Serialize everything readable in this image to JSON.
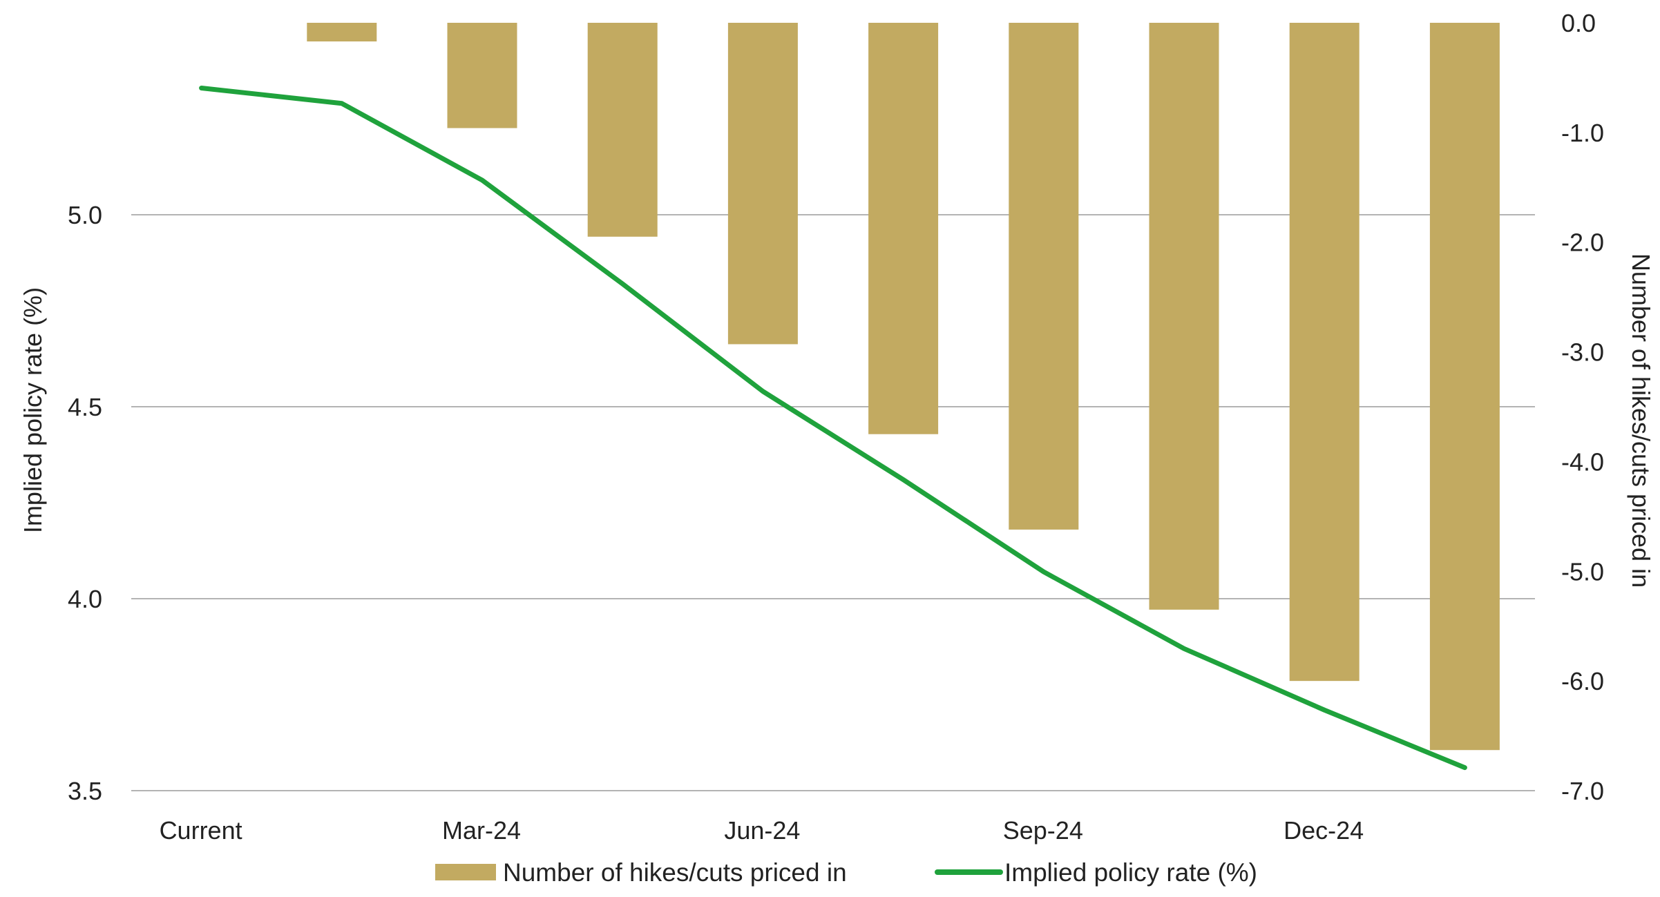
{
  "chart_data": {
    "type": "bar",
    "title": "",
    "categories": [
      "Current",
      "",
      "Mar-24",
      "",
      "Jun-24",
      "",
      "Sep-24",
      "",
      "Dec-24",
      ""
    ],
    "x_tick_labels": [
      "Current",
      "Mar-24",
      "Jun-24",
      "Sep-24",
      "Dec-24"
    ],
    "series": [
      {
        "name": "Number of hikes/cuts priced in",
        "type": "bar",
        "axis": "right",
        "color": "#c2aa61",
        "values": [
          null,
          -0.17,
          -0.96,
          -1.95,
          -2.93,
          -3.75,
          -4.62,
          -5.35,
          -6.0,
          -6.63
        ]
      },
      {
        "name": "Implied policy rate (%)",
        "type": "line",
        "axis": "left",
        "color": "#1fa23c",
        "values": [
          5.33,
          5.29,
          5.09,
          4.82,
          4.54,
          4.31,
          4.07,
          3.87,
          3.71,
          3.56
        ]
      }
    ],
    "y_left": {
      "label": "Implied policy rate (%)",
      "ylim": [
        3.5,
        5.5
      ],
      "ticks": [
        "3.5",
        "4.0",
        "4.5",
        "5.0"
      ]
    },
    "y_right": {
      "label": "Number of hikes/cuts priced in",
      "ylim": [
        -7.0,
        0.0
      ],
      "ticks": [
        "0.0",
        "-1.0",
        "-2.0",
        "-3.0",
        "-4.0",
        "-5.0",
        "-6.0",
        "-7.0"
      ]
    },
    "grid": true,
    "legend": "bottom"
  }
}
